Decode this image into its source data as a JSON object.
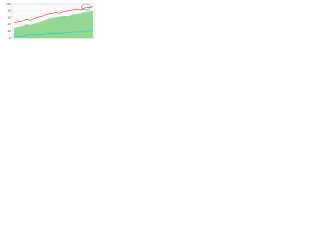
{
  "chart_data": {
    "type": "line",
    "categories": [
      null,
      null,
      null,
      null,
      null,
      null,
      null,
      null,
      null,
      null,
      null,
      null,
      null,
      null,
      null,
      null,
      null,
      null,
      null,
      null
    ],
    "series": [
      {
        "style": "area",
        "color": "#7fd17f",
        "values": [
          30,
          32,
          35,
          40,
          38,
          42,
          45,
          50,
          55,
          58,
          60,
          62,
          65,
          63,
          68,
          70,
          72,
          75,
          78,
          80
        ]
      },
      {
        "style": "line",
        "color": "#e0302f",
        "values": [
          45,
          48,
          50,
          55,
          52,
          58,
          62,
          65,
          70,
          72,
          75,
          73,
          78,
          80,
          82,
          85,
          83,
          88,
          90,
          92
        ]
      },
      {
        "style": "line",
        "color": "#22c3d6",
        "values": [
          5,
          6,
          5,
          8,
          10,
          9,
          12,
          10,
          14,
          12,
          15,
          13,
          16,
          15,
          18,
          17,
          20,
          18,
          22,
          20
        ]
      }
    ],
    "ylim": [
      0,
      100
    ],
    "yticks": [
      0,
      20,
      40,
      60,
      80,
      100
    ],
    "grid": true
  }
}
